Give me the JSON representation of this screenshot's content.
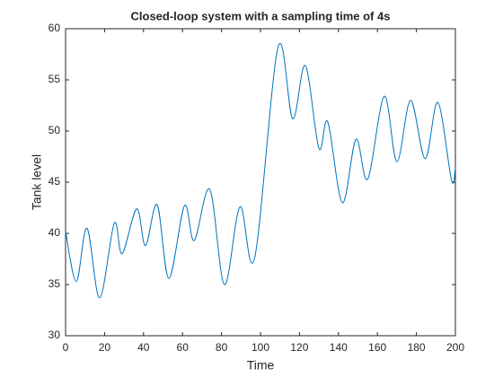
{
  "chart_data": {
    "type": "line",
    "title": "Closed-loop system with a sampling time of 4s",
    "xlabel": "Time",
    "ylabel": "Tank level",
    "x": [
      0,
      5.5,
      11,
      17.5,
      25,
      29,
      36.5,
      41,
      47,
      53,
      61,
      66,
      74,
      81.5,
      89.5,
      97,
      109,
      116.5,
      123,
      130,
      134.5,
      142,
      149,
      155,
      163.5,
      170,
      177,
      184.5,
      191,
      198,
      200
    ],
    "series": [
      {
        "name": "Tank level",
        "color": "#0072bd",
        "values": [
          40.2,
          35.3,
          40.5,
          33.7,
          41,
          38,
          42.4,
          38.8,
          42.8,
          35.6,
          42.7,
          39.3,
          44.3,
          35,
          42.6,
          37.6,
          58.2,
          51.2,
          56.4,
          48.3,
          50.9,
          43,
          49.2,
          45.3,
          53.4,
          47,
          53,
          47.3,
          52.8,
          45.2,
          46.4
        ]
      }
    ],
    "xlim": [
      0,
      200
    ],
    "xticks": [
      0,
      20,
      40,
      60,
      80,
      100,
      120,
      140,
      160,
      180,
      200
    ],
    "ylim": [
      30,
      60
    ],
    "yticks": [
      30,
      35,
      40,
      45,
      50,
      55,
      60
    ],
    "grid": false
  }
}
